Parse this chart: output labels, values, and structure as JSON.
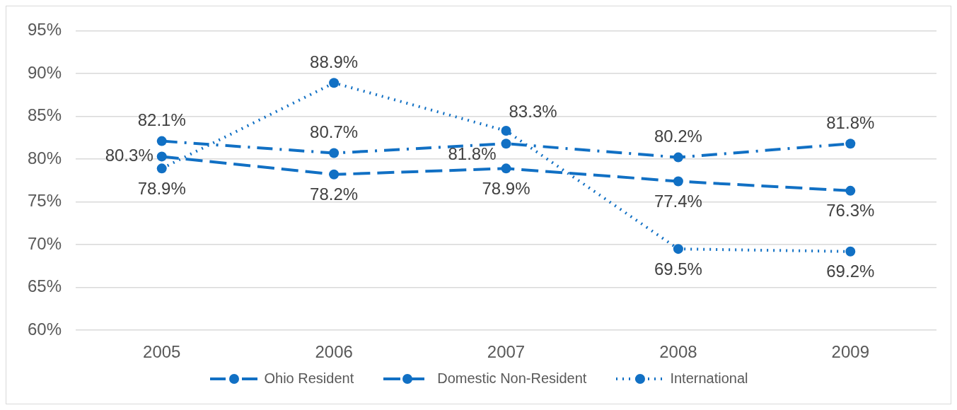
{
  "chart_data": {
    "type": "line",
    "categories": [
      "2005",
      "2006",
      "2007",
      "2008",
      "2009"
    ],
    "series": [
      {
        "name": "Ohio Resident",
        "color": "#1170c4",
        "line_style": "dashdot",
        "values": [
          82.1,
          80.7,
          81.8,
          80.2,
          81.8
        ],
        "value_labels": [
          "82.1%",
          "80.7%",
          "81.8%",
          "80.2%",
          "81.8%"
        ]
      },
      {
        "name": "Domestic Non-Resident",
        "color": "#1170c4",
        "line_style": "dashed",
        "values": [
          80.3,
          78.2,
          78.9,
          77.4,
          76.3
        ],
        "value_labels": [
          "80.3%",
          "78.2%",
          "78.9%",
          "77.4%",
          "76.3%"
        ]
      },
      {
        "name": "International",
        "color": "#1170c4",
        "line_style": "dotted",
        "values": [
          78.9,
          88.9,
          83.3,
          69.5,
          69.2
        ],
        "value_labels": [
          "78.9%",
          "88.9%",
          "83.3%",
          "69.5%",
          "69.2%"
        ]
      }
    ],
    "ylim": [
      60,
      95
    ],
    "yticks": [
      {
        "value": 60,
        "label": "60%"
      },
      {
        "value": 65,
        "label": "65%"
      },
      {
        "value": 70,
        "label": "70%"
      },
      {
        "value": 75,
        "label": "75%"
      },
      {
        "value": 80,
        "label": "80%"
      },
      {
        "value": 85,
        "label": "85%"
      },
      {
        "value": 90,
        "label": "90%"
      },
      {
        "value": 95,
        "label": "95%"
      }
    ],
    "grid": "y",
    "legend": "bottom",
    "marker": "circle"
  }
}
